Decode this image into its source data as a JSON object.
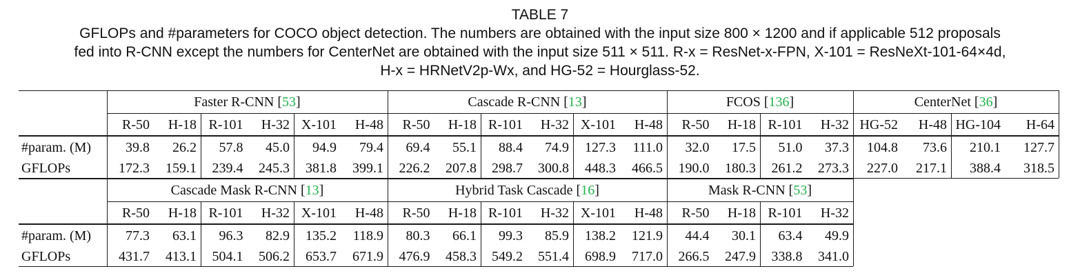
{
  "caption": {
    "title": "TABLE 7",
    "line1": "GFLOPs and #parameters for COCO object detection. The numbers are obtained with the input size 800 × 1200 and if applicable 512 proposals",
    "line2": "fed into R-CNN except the numbers for CenterNet are obtained with the input size 511 × 511. R-x = ResNet-x-FPN, X-101 = ResNeXt-101-64×4d,",
    "line3": "H-x = HRNetV2p-Wx, and HG-52 = Hourglass-52."
  },
  "row_labels": {
    "params": "#param. (M)",
    "gflops": "GFLOPs"
  },
  "blocks": [
    {
      "groups": [
        {
          "name": "Faster R-CNN",
          "cite": "53",
          "columns": [
            "R-50",
            "H-18",
            "R-101",
            "H-32",
            "X-101",
            "H-48"
          ],
          "params": [
            "39.8",
            "26.2",
            "57.8",
            "45.0",
            "94.9",
            "79.4"
          ],
          "gflops": [
            "172.3",
            "159.1",
            "239.4",
            "245.3",
            "381.8",
            "399.1"
          ]
        },
        {
          "name": "Cascade R-CNN",
          "cite": "13",
          "columns": [
            "R-50",
            "H-18",
            "R-101",
            "H-32",
            "X-101",
            "H-48"
          ],
          "params": [
            "69.4",
            "55.1",
            "88.4",
            "74.9",
            "127.3",
            "111.0"
          ],
          "gflops": [
            "226.2",
            "207.8",
            "298.7",
            "300.8",
            "448.3",
            "466.5"
          ]
        },
        {
          "name": "FCOS",
          "cite": "136",
          "columns": [
            "R-50",
            "H-18",
            "R-101",
            "H-32"
          ],
          "params": [
            "32.0",
            "17.5",
            "51.0",
            "37.3"
          ],
          "gflops": [
            "190.0",
            "180.3",
            "261.2",
            "273.3"
          ]
        },
        {
          "name": "CenterNet",
          "cite": "36",
          "columns": [
            "HG-52",
            "H-48",
            "HG-104",
            "H-64"
          ],
          "params": [
            "104.8",
            "73.6",
            "210.1",
            "127.7"
          ],
          "gflops": [
            "227.0",
            "217.1",
            "388.4",
            "318.5"
          ]
        }
      ]
    },
    {
      "groups": [
        {
          "name": "Cascade Mask R-CNN",
          "cite": "13",
          "columns": [
            "R-50",
            "H-18",
            "R-101",
            "H-32",
            "X-101",
            "H-48"
          ],
          "params": [
            "77.3",
            "63.1",
            "96.3",
            "82.9",
            "135.2",
            "118.9"
          ],
          "gflops": [
            "431.7",
            "413.1",
            "504.1",
            "506.2",
            "653.7",
            "671.9"
          ]
        },
        {
          "name": "Hybrid Task Cascade",
          "cite": "16",
          "columns": [
            "R-50",
            "H-18",
            "R-101",
            "H-32",
            "X-101",
            "H-48"
          ],
          "params": [
            "80.3",
            "66.1",
            "99.3",
            "85.9",
            "138.2",
            "121.9"
          ],
          "gflops": [
            "476.9",
            "458.3",
            "549.2",
            "551.4",
            "698.9",
            "717.0"
          ]
        },
        {
          "name": "Mask R-CNN",
          "cite": "53",
          "columns": [
            "R-50",
            "H-18",
            "R-101",
            "H-32"
          ],
          "params": [
            "44.4",
            "30.1",
            "63.4",
            "49.9"
          ],
          "gflops": [
            "266.5",
            "247.9",
            "338.8",
            "341.0"
          ]
        }
      ]
    }
  ]
}
